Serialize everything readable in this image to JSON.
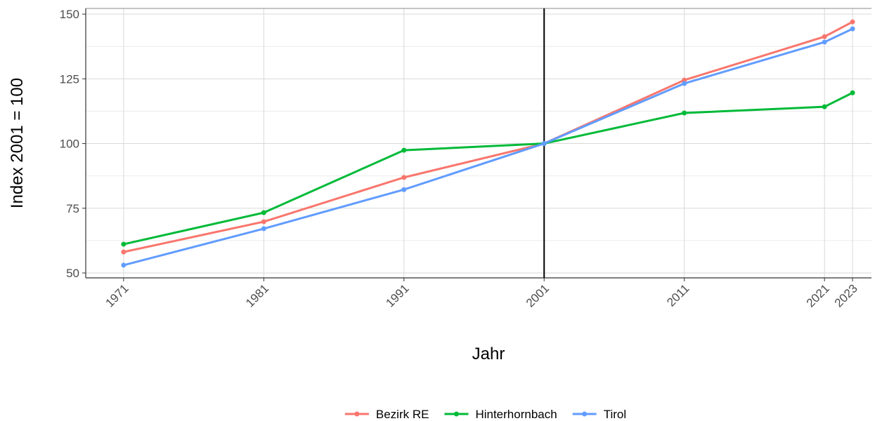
{
  "chart_data": {
    "type": "line",
    "x_label": "Jahr",
    "y_label": "Index 2001 = 100",
    "x": [
      1971,
      1981,
      1991,
      2001,
      2011,
      2021,
      2023
    ],
    "series": [
      {
        "name": "Bezirk RE",
        "color": "#F8766D",
        "values": [
          58.1,
          69.8,
          86.9,
          100,
          124.5,
          141.3,
          147.0
        ]
      },
      {
        "name": "Hinterhornbach",
        "color": "#00BA38",
        "values": [
          61.1,
          73.3,
          97.4,
          100,
          111.8,
          114.2,
          119.6
        ]
      },
      {
        "name": "Tirol",
        "color": "#619CFF",
        "values": [
          53.0,
          67.1,
          82.2,
          100,
          123.2,
          139.2,
          144.3
        ]
      }
    ],
    "xlim": [
      1968.3,
      2024.35
    ],
    "ylim": [
      48.1,
      152.2
    ],
    "xticks": [
      1971,
      1981,
      1991,
      2001,
      2011,
      2021,
      2023
    ],
    "yticks": [
      50,
      75,
      100,
      125,
      150
    ],
    "vline": 2001,
    "grid": true,
    "legend": "bottom"
  }
}
